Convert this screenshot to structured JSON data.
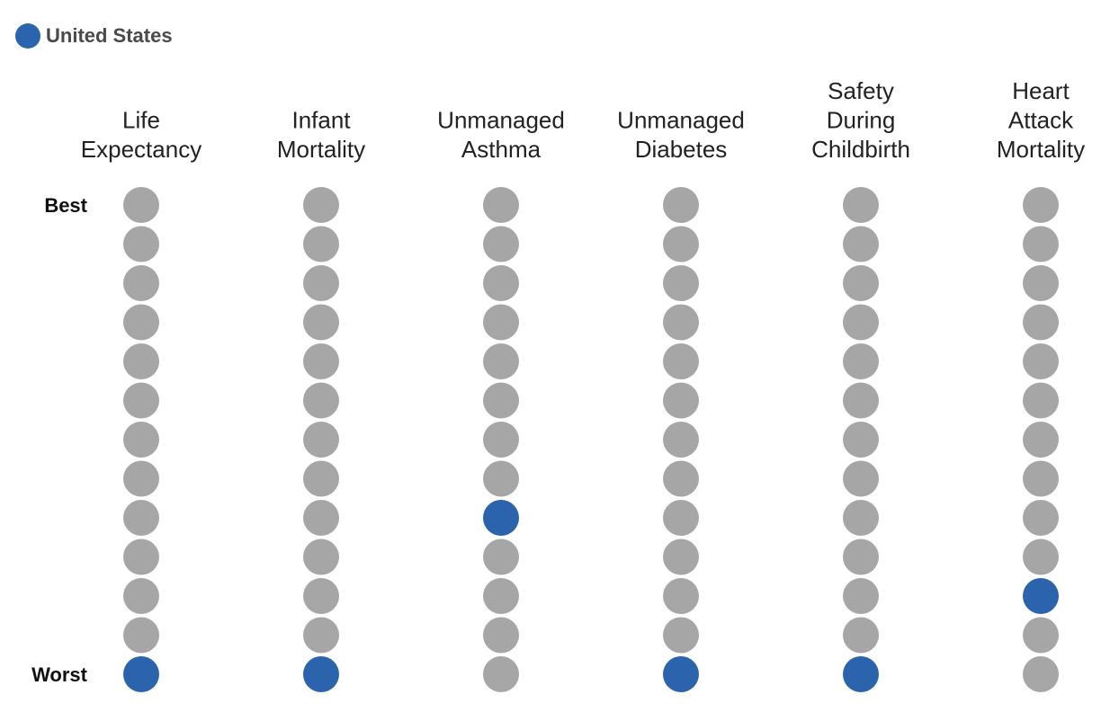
{
  "legend": {
    "label": "United States",
    "color": "#2b64ad"
  },
  "colors": {
    "highlight": "#2b64ad",
    "other": "#a6a6a6"
  },
  "chart_data": {
    "type": "scatter",
    "rank_scale": {
      "best_label": "Best",
      "worst_label": "Worst",
      "positions": 13
    },
    "series": [
      {
        "name": "United States",
        "color": "#2b64ad"
      }
    ],
    "categories": [
      {
        "title_lines": [
          "Life",
          "Expectancy"
        ],
        "us_rank": 13
      },
      {
        "title_lines": [
          "Infant",
          "Mortality"
        ],
        "us_rank": 13
      },
      {
        "title_lines": [
          "Unmanaged",
          "Asthma"
        ],
        "us_rank": 9
      },
      {
        "title_lines": [
          "Unmanaged",
          "Diabetes"
        ],
        "us_rank": 13
      },
      {
        "title_lines": [
          "Safety",
          "During",
          "Childbirth"
        ],
        "us_rank": 13
      },
      {
        "title_lines": [
          "Heart",
          "Attack",
          "Mortality"
        ],
        "us_rank": 11
      }
    ]
  }
}
